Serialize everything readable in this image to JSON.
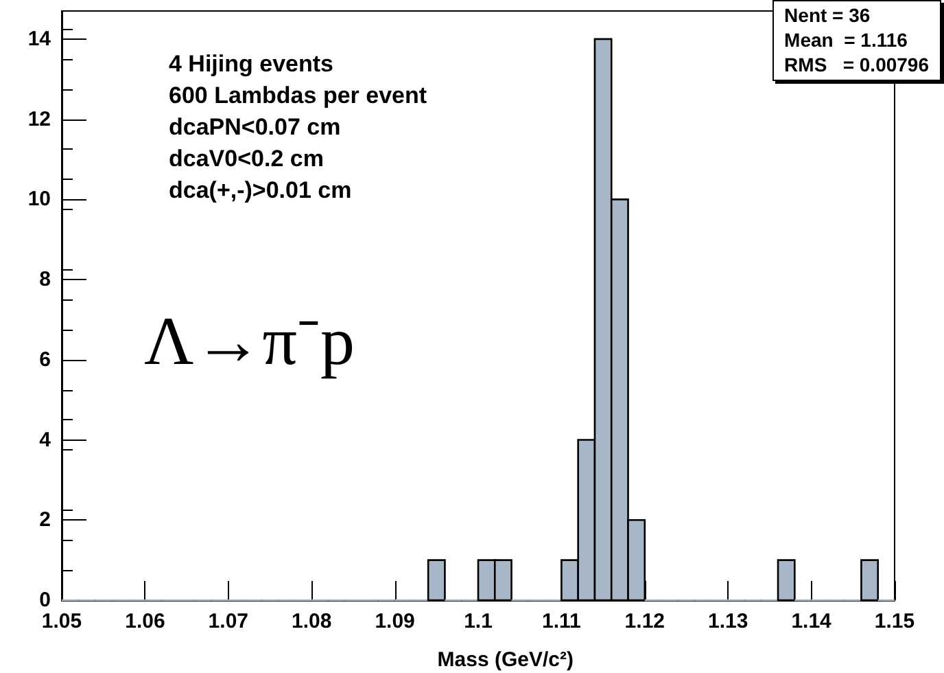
{
  "chart_data": {
    "type": "histogram",
    "xlabel": "Mass (GeV/c²)",
    "bins": [
      1.05,
      1.052,
      1.054,
      1.056,
      1.058,
      1.06,
      1.062,
      1.064,
      1.066,
      1.068,
      1.07,
      1.072,
      1.074,
      1.076,
      1.078,
      1.08,
      1.082,
      1.084,
      1.086,
      1.088,
      1.09,
      1.092,
      1.094,
      1.096,
      1.098,
      1.1,
      1.102,
      1.104,
      1.106,
      1.108,
      1.11,
      1.112,
      1.114,
      1.116,
      1.118,
      1.12,
      1.122,
      1.124,
      1.126,
      1.128,
      1.13,
      1.132,
      1.134,
      1.136,
      1.138,
      1.14,
      1.142,
      1.144,
      1.146,
      1.148,
      1.15
    ],
    "values": [
      0,
      0,
      0,
      0,
      0,
      0,
      0,
      0,
      0,
      0,
      0,
      0,
      0,
      0,
      0,
      0,
      0,
      0,
      0,
      0,
      0,
      0,
      1,
      0,
      0,
      1,
      1,
      0,
      0,
      0,
      1,
      4,
      14,
      10,
      2,
      0,
      0,
      0,
      0,
      0,
      0,
      0,
      0,
      1,
      0,
      0,
      0,
      0,
      1,
      0
    ],
    "color": "#a8b7c7",
    "xlim": [
      1.05,
      1.15
    ],
    "xticks": [
      1.05,
      1.06,
      1.07,
      1.08,
      1.09,
      1.1,
      1.11,
      1.12,
      1.13,
      1.14,
      1.15
    ],
    "ylim": [
      0,
      14.7
    ],
    "yticks": [
      0,
      2,
      4,
      6,
      8,
      10,
      12,
      14
    ],
    "grid": false,
    "annotations": [
      "4 Hijing events",
      "600 Lambdas per event",
      "dcaPN<0.07 cm",
      "dcaV0<0.2 cm",
      "dca(+,-)>0.01 cm",
      "Λ→π⁻p",
      "Nent = 36",
      "Mean  = 1.116",
      "RMS   = 0.00796"
    ]
  }
}
